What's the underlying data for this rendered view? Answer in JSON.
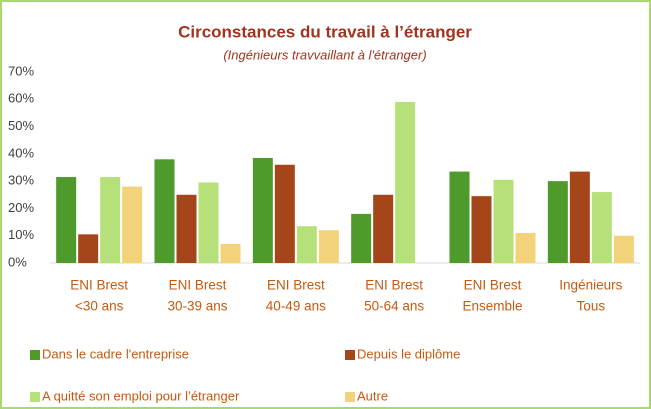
{
  "chart_data": {
    "type": "bar",
    "title": "Circonstances du travail à l’étranger",
    "subtitle": "(Ingénieurs travvaillant à l'étranger)",
    "categories": [
      [
        "ENI Brest",
        "<30 ans"
      ],
      [
        "ENI Brest",
        "30-39 ans"
      ],
      [
        "ENI Brest",
        "40-49 ans"
      ],
      [
        "ENI Brest",
        "50-64 ans"
      ],
      [
        "ENI Brest",
        "Ensemble"
      ],
      [
        "Ingénieurs",
        "Tous"
      ]
    ],
    "series": [
      {
        "name": "Dans le cadre l'entreprise",
        "color": "#4e9a2a",
        "values": [
          31.5,
          38,
          38.5,
          18,
          33.5,
          30
        ]
      },
      {
        "name": "Depuis le diplôme",
        "color": "#a5461a",
        "values": [
          10.5,
          25,
          36,
          25,
          24.5,
          33.5
        ]
      },
      {
        "name": "A quitté son emploi pour l’étranger",
        "color": "#b5e07a",
        "values": [
          31.5,
          29.5,
          13.5,
          59,
          30.5,
          26
        ]
      },
      {
        "name": "Autre",
        "color": "#f2d27a",
        "values": [
          28,
          7,
          12,
          0,
          11,
          10
        ]
      }
    ],
    "ylim": [
      0,
      70
    ],
    "yticks": [
      {
        "value": 0,
        "label": "0%"
      },
      {
        "value": 10,
        "label": "10%"
      },
      {
        "value": 20,
        "label": "20%"
      },
      {
        "value": 30,
        "label": "30%"
      },
      {
        "value": 40,
        "label": "40%"
      },
      {
        "value": 50,
        "label": "50%"
      },
      {
        "value": 60,
        "label": "60%"
      },
      {
        "value": 70,
        "label": "70%"
      }
    ],
    "grid": false
  }
}
